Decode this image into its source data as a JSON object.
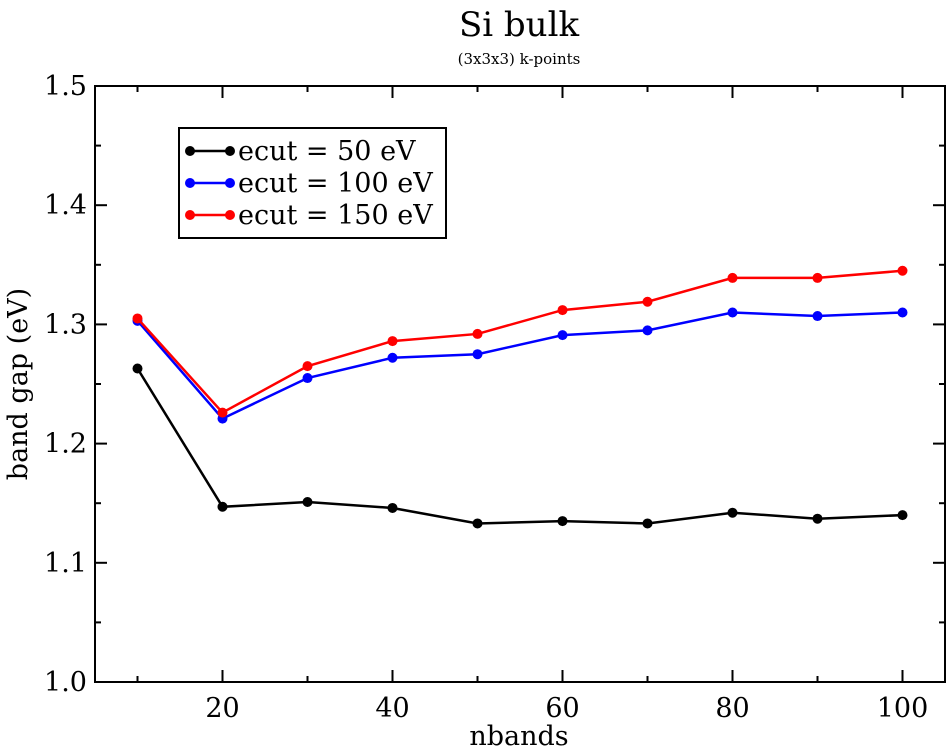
{
  "chart_data": {
    "type": "line",
    "title": "Si bulk",
    "subtitle": "(3x3x3) k-points",
    "xlabel": "nbands",
    "ylabel": "band gap (eV)",
    "xlim": [
      5,
      105
    ],
    "ylim": [
      1.0,
      1.5
    ],
    "xticks": [
      20,
      40,
      60,
      80,
      100
    ],
    "xtick_labels": [
      "20",
      "40",
      "60",
      "80",
      "100"
    ],
    "yticks": [
      1.0,
      1.1,
      1.2,
      1.3,
      1.4,
      1.5
    ],
    "ytick_labels": [
      "1.0",
      "1.1",
      "1.2",
      "1.3",
      "1.4",
      "1.5"
    ],
    "grid": false,
    "legend_position": "top-left",
    "x": [
      10,
      20,
      30,
      40,
      50,
      60,
      70,
      80,
      90,
      100
    ],
    "series": [
      {
        "name": "ecut = 50 eV",
        "color": "#000000",
        "values": [
          1.263,
          1.147,
          1.151,
          1.146,
          1.133,
          1.135,
          1.133,
          1.142,
          1.137,
          1.14
        ]
      },
      {
        "name": "ecut = 100 eV",
        "color": "#0000ff",
        "values": [
          1.303,
          1.221,
          1.255,
          1.272,
          1.275,
          1.291,
          1.295,
          1.31,
          1.307,
          1.31
        ]
      },
      {
        "name": "ecut = 150 eV",
        "color": "#ff0000",
        "values": [
          1.305,
          1.226,
          1.265,
          1.286,
          1.292,
          1.312,
          1.319,
          1.339,
          1.339,
          1.345
        ]
      }
    ]
  }
}
